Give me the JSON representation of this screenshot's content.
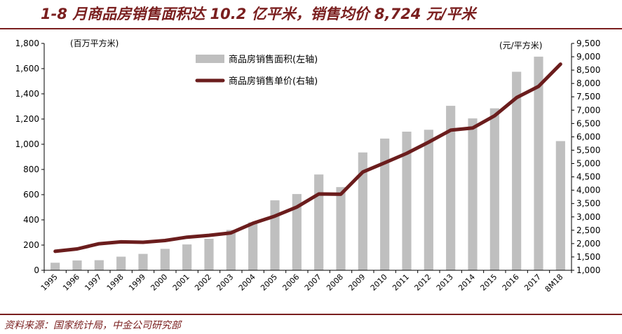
{
  "header": {
    "title": "1-8 月商品房销售面积达 10.2 亿平米，销售均价 8,724 元/平米"
  },
  "footer": {
    "source": "资料来源：国家统计局，中金公司研究部"
  },
  "chart_data": {
    "type": "bar+line",
    "categories": [
      "1995",
      "1996",
      "1997",
      "1998",
      "1999",
      "2000",
      "2001",
      "2002",
      "2003",
      "2004",
      "2005",
      "2006",
      "2007",
      "2008",
      "2009",
      "2010",
      "2011",
      "2012",
      "2013",
      "2014",
      "2015",
      "2016",
      "2017",
      "8M18"
    ],
    "series": [
      {
        "name": "商品房销售面积(左轴)",
        "type": "bar",
        "axis": "left",
        "color": "#bfbfbf",
        "values": [
          60,
          78,
          80,
          108,
          130,
          170,
          205,
          250,
          320,
          380,
          555,
          605,
          760,
          660,
          935,
          1045,
          1100,
          1115,
          1305,
          1205,
          1285,
          1575,
          1695,
          1025
        ]
      },
      {
        "name": "商品房销售单价(右轴)",
        "type": "line",
        "axis": "right",
        "color": "#6b1d1d",
        "values": [
          1710,
          1800,
          1995,
          2065,
          2050,
          2115,
          2240,
          2310,
          2400,
          2760,
          3030,
          3370,
          3860,
          3850,
          4680,
          5030,
          5380,
          5800,
          6250,
          6330,
          6790,
          7470,
          7890,
          8724
        ]
      }
    ],
    "left_axis": {
      "unit_label": "(百万平方米)",
      "range": [
        0,
        1800
      ],
      "ticks": [
        "0",
        "200",
        "400",
        "600",
        "800",
        "1,000",
        "1,200",
        "1,400",
        "1,600",
        "1,800"
      ]
    },
    "right_axis": {
      "unit_label": "(元/平方米)",
      "range": [
        1000,
        9500
      ],
      "ticks": [
        "1,000",
        "1,500",
        "2,000",
        "2,500",
        "3,000",
        "3,500",
        "4,000",
        "4,500",
        "5,000",
        "5,500",
        "6,000",
        "6,500",
        "7,000",
        "7,500",
        "8,000",
        "8,500",
        "9,000",
        "9,500"
      ]
    },
    "legend": {
      "position": "top-center",
      "entries": [
        "商品房销售面积(左轴)",
        "商品房销售单价(右轴)"
      ]
    },
    "grid": false
  }
}
